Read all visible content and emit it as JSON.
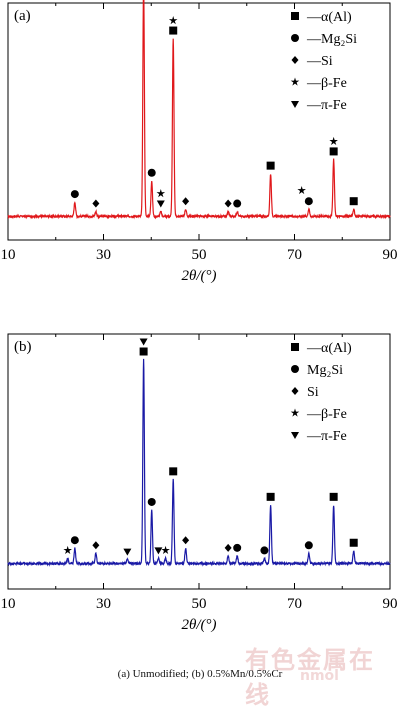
{
  "caption": "(a) Unmodified; (b) 0.5%Mn/0.5%Cr",
  "watermark": "有色金属在线",
  "watermark_url": "nmol",
  "chart_data": [
    {
      "type": "line",
      "panel_label": "(a)",
      "xlabel": "2θ/(°)",
      "xlim": [
        10,
        90
      ],
      "ylim": [
        0,
        1
      ],
      "x_ticks": [
        10,
        30,
        50,
        70,
        90
      ],
      "color": "#e0181b",
      "baseline": 0.1,
      "peaks": [
        {
          "x": 24.0,
          "h": 0.06,
          "marker": "circle"
        },
        {
          "x": 28.4,
          "h": 0.02,
          "marker": "diamond"
        },
        {
          "x": 38.4,
          "h": 0.98,
          "marker": "square"
        },
        {
          "x": 40.1,
          "h": 0.15,
          "marker": "circle"
        },
        {
          "x": 42.0,
          "h": 0.02,
          "marker": "triangle"
        },
        {
          "x": 44.6,
          "h": 0.75,
          "marker": "square"
        },
        {
          "x": 47.2,
          "h": 0.03,
          "marker": "diamond"
        },
        {
          "x": 56.1,
          "h": 0.02,
          "marker": "diamond"
        },
        {
          "x": 58.0,
          "h": 0.02,
          "marker": "circle"
        },
        {
          "x": 65.0,
          "h": 0.18,
          "marker": "square"
        },
        {
          "x": 73.0,
          "h": 0.03,
          "marker": "circle"
        },
        {
          "x": 78.2,
          "h": 0.24,
          "marker": "square"
        },
        {
          "x": 82.4,
          "h": 0.03,
          "marker": "square"
        }
      ],
      "extra_markers": [
        {
          "x": 38.4,
          "marker": "triangle"
        },
        {
          "x": 44.6,
          "marker": "star"
        },
        {
          "x": 42.0,
          "marker": "star"
        },
        {
          "x": 71.5,
          "marker": "star"
        },
        {
          "x": 78.2,
          "marker": "star"
        }
      ],
      "legend": [
        {
          "marker": "square",
          "label": "—α(Al)"
        },
        {
          "marker": "circle",
          "label": "—Mg₂Si"
        },
        {
          "marker": "diamond",
          "label": "—Si"
        },
        {
          "marker": "star",
          "label": "—β-Fe"
        },
        {
          "marker": "triangle",
          "label": "—π-Fe"
        }
      ]
    },
    {
      "type": "line",
      "panel_label": "(b)",
      "xlabel": "2θ/(°)",
      "xlim": [
        10,
        90
      ],
      "ylim": [
        0,
        1
      ],
      "x_ticks": [
        10,
        30,
        50,
        70,
        90
      ],
      "color": "#1a1aa6",
      "baseline": 0.1,
      "peaks": [
        {
          "x": 22.5,
          "h": 0.02,
          "marker": "star"
        },
        {
          "x": 24.0,
          "h": 0.06,
          "marker": "circle"
        },
        {
          "x": 28.4,
          "h": 0.04,
          "marker": "diamond"
        },
        {
          "x": 35.0,
          "h": 0.015,
          "marker": "triangle"
        },
        {
          "x": 38.4,
          "h": 0.8,
          "marker": "square"
        },
        {
          "x": 40.1,
          "h": 0.21,
          "marker": "circle"
        },
        {
          "x": 41.5,
          "h": 0.02,
          "marker": "triangle"
        },
        {
          "x": 43.0,
          "h": 0.02,
          "marker": "star"
        },
        {
          "x": 44.6,
          "h": 0.33,
          "marker": "square"
        },
        {
          "x": 47.2,
          "h": 0.06,
          "marker": "diamond"
        },
        {
          "x": 56.1,
          "h": 0.03,
          "marker": "diamond"
        },
        {
          "x": 58.0,
          "h": 0.03,
          "marker": "circle"
        },
        {
          "x": 63.7,
          "h": 0.02,
          "marker": "circle"
        },
        {
          "x": 65.0,
          "h": 0.23,
          "marker": "square"
        },
        {
          "x": 73.0,
          "h": 0.04,
          "marker": "circle"
        },
        {
          "x": 78.2,
          "h": 0.23,
          "marker": "square"
        },
        {
          "x": 82.4,
          "h": 0.05,
          "marker": "square"
        }
      ],
      "extra_markers": [
        {
          "x": 38.4,
          "marker": "triangle"
        }
      ],
      "legend": [
        {
          "marker": "square",
          "label": "—α(Al)"
        },
        {
          "marker": "circle",
          "label": "Mg₂Si"
        },
        {
          "marker": "diamond",
          "label": "Si"
        },
        {
          "marker": "star",
          "label": "—β-Fe"
        },
        {
          "marker": "triangle",
          "label": "—π-Fe"
        }
      ]
    }
  ]
}
